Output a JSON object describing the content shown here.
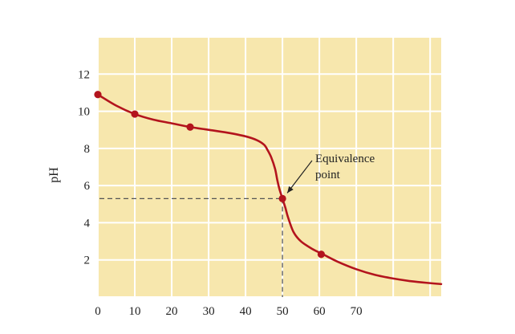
{
  "chart_data": {
    "type": "line",
    "title": "",
    "xlabel": "",
    "ylabel": "pH",
    "xlim": [
      0,
      93
    ],
    "ylim": [
      0,
      14
    ],
    "x_ticks": [
      0,
      10,
      20,
      30,
      40,
      50,
      60,
      70
    ],
    "y_ticks": [
      2,
      4,
      6,
      8,
      10,
      12
    ],
    "x_grid": [
      0,
      10,
      20,
      30,
      40,
      50,
      60,
      70,
      80,
      90
    ],
    "grid": true,
    "colors": {
      "background": "#f7e7ad",
      "grid": "#ffffff",
      "curve": "#b3141d",
      "point": "#b3141d",
      "guide": "#555555"
    },
    "series": [
      {
        "x": [
          0,
          5,
          10,
          15,
          20,
          25,
          30,
          35,
          40,
          43,
          45,
          46,
          47,
          48,
          48.6,
          49.2,
          50,
          50.8,
          51.5,
          53,
          55,
          58,
          61,
          65,
          70,
          75,
          80,
          85,
          90,
          93
        ],
        "y": [
          10.9,
          10.3,
          9.85,
          9.55,
          9.35,
          9.15,
          9.0,
          8.85,
          8.65,
          8.45,
          8.2,
          7.9,
          7.5,
          6.9,
          6.3,
          5.8,
          5.3,
          4.8,
          4.3,
          3.5,
          3.0,
          2.6,
          2.3,
          1.9,
          1.5,
          1.2,
          1.0,
          0.85,
          0.75,
          0.7
        ]
      }
    ],
    "markers": [
      {
        "x": 0,
        "y": 10.9
      },
      {
        "x": 10,
        "y": 9.85
      },
      {
        "x": 25,
        "y": 9.15
      },
      {
        "x": 50,
        "y": 5.3
      },
      {
        "x": 60.5,
        "y": 2.3
      }
    ],
    "equivalence": {
      "x": 50,
      "y": 5.3,
      "label_line1": "Equivalence",
      "label_line2": "point"
    }
  }
}
